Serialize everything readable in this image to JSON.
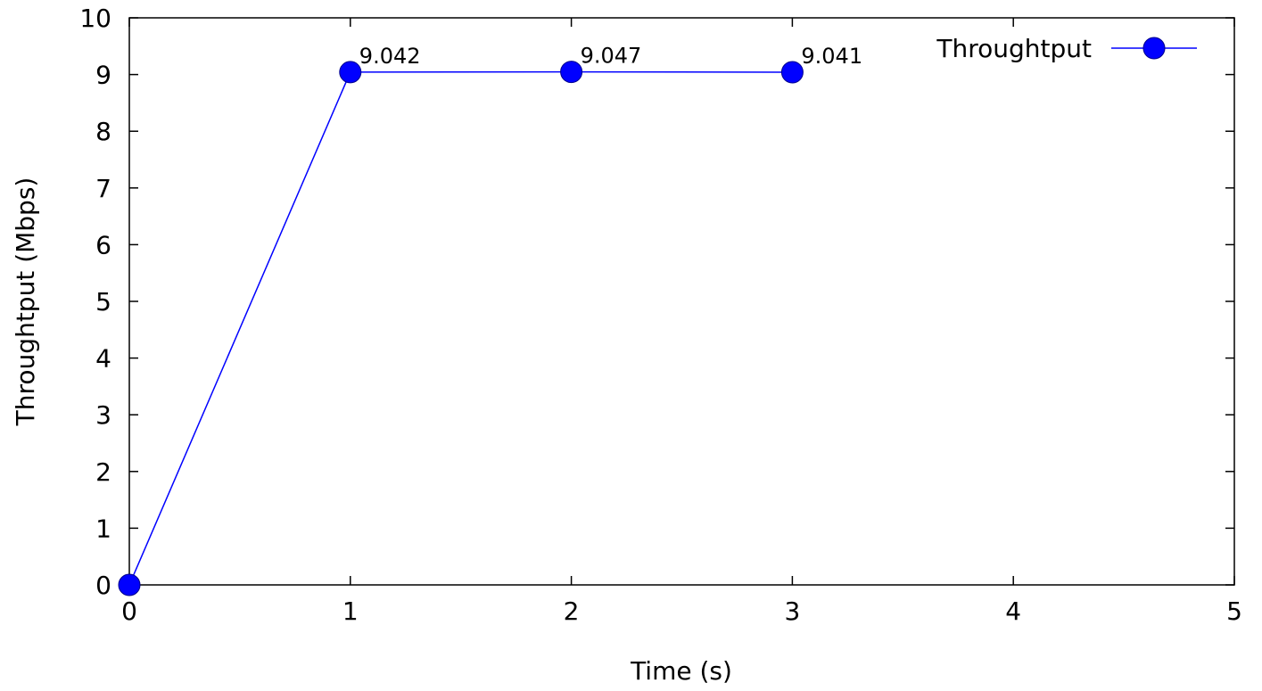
{
  "chart_data": {
    "type": "line",
    "xlabel": "Time (s)",
    "ylabel": "Throughtput (Mbps)",
    "xlim": [
      0,
      5
    ],
    "ylim": [
      0,
      10
    ],
    "xticks": [
      "0",
      "1",
      "2",
      "3",
      "4",
      "5"
    ],
    "yticks": [
      "0",
      "1",
      "2",
      "3",
      "4",
      "5",
      "6",
      "7",
      "8",
      "9",
      "10"
    ],
    "grid": false,
    "legend_position": "top-right",
    "series": [
      {
        "name": "Throughtput",
        "color": "#0000ff",
        "x": [
          0,
          1,
          2,
          3
        ],
        "y": [
          0,
          9.042,
          9.047,
          9.041
        ],
        "point_labels": [
          "",
          "9.042",
          "9.047",
          "9.041"
        ]
      }
    ]
  }
}
